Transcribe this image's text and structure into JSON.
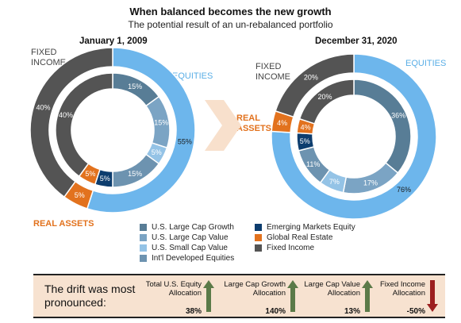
{
  "header": {
    "title": "When balanced becomes the new growth",
    "subtitle": "The potential result of an un-rebalanced portfolio"
  },
  "colors": {
    "us_large_cap_growth": "#587d96",
    "us_large_cap_value": "#7ba4c4",
    "us_small_cap_value": "#94c3e6",
    "intl_developed": "#6d93b0",
    "emerging_markets": "#0d3d6e",
    "global_real_estate": "#e2721e",
    "fixed_income": "#545454",
    "equities_outer": "#6db6ec",
    "fixed_outer": "#545454",
    "real_assets_outer": "#e2721e",
    "up_arrow": "#5b7a48",
    "down_arrow": "#9c1f1f"
  },
  "chart_data": [
    {
      "type": "pie",
      "title": "January 1, 2009",
      "group_labels": {
        "fixed": "FIXED INCOME",
        "equities": "EQUITIES",
        "real": "REAL ASSETS"
      },
      "outer": [
        {
          "name": "EQUITIES",
          "value": 55,
          "label": "55%"
        },
        {
          "name": "REAL ASSETS",
          "value": 5,
          "label": "5%"
        },
        {
          "name": "FIXED INCOME",
          "value": 40,
          "label": "40%"
        }
      ],
      "inner": [
        {
          "name": "U.S. Large Cap Growth",
          "value": 15,
          "label": "15%"
        },
        {
          "name": "U.S. Large Cap Value",
          "value": 15,
          "label": "15%"
        },
        {
          "name": "U.S. Small Cap Value",
          "value": 5,
          "label": "5%"
        },
        {
          "name": "Int'l Developed Equities",
          "value": 15,
          "label": "15%"
        },
        {
          "name": "Emerging Markets Equity",
          "value": 5,
          "label": "5%"
        },
        {
          "name": "Global Real Estate",
          "value": 5,
          "label": "5%"
        },
        {
          "name": "Fixed Income",
          "value": 40,
          "label": "40%"
        }
      ]
    },
    {
      "type": "pie",
      "title": "December 31, 2020",
      "group_labels": {
        "fixed": "FIXED INCOME",
        "equities": "EQUITIES",
        "real": "REAL ASSETS"
      },
      "outer": [
        {
          "name": "EQUITIES",
          "value": 76,
          "label": "76%"
        },
        {
          "name": "REAL ASSETS",
          "value": 4,
          "label": "4%"
        },
        {
          "name": "FIXED INCOME",
          "value": 20,
          "label": "20%"
        }
      ],
      "inner": [
        {
          "name": "U.S. Large Cap Growth",
          "value": 36,
          "label": "36%"
        },
        {
          "name": "U.S. Large Cap Value",
          "value": 17,
          "label": "17%"
        },
        {
          "name": "U.S. Small Cap Value",
          "value": 7,
          "label": "7%"
        },
        {
          "name": "Int'l Developed Equities",
          "value": 11,
          "label": "11%"
        },
        {
          "name": "Emerging Markets Equity",
          "value": 5,
          "label": "5%"
        },
        {
          "name": "Global Real Estate",
          "value": 4,
          "label": "4%"
        },
        {
          "name": "Fixed Income",
          "value": 20,
          "label": "20%"
        }
      ]
    }
  ],
  "legend": [
    {
      "label": "U.S. Large Cap Growth",
      "color": "#587d96"
    },
    {
      "label": "U.S. Large Cap Value",
      "color": "#7ba4c4"
    },
    {
      "label": "U.S. Small Cap Value",
      "color": "#94c3e6"
    },
    {
      "label": "Int'l Developed Equities",
      "color": "#6d93b0"
    },
    {
      "label": "Emerging Markets Equity",
      "color": "#0d3d6e"
    },
    {
      "label": "Global Real Estate",
      "color": "#e2721e"
    },
    {
      "label": "Fixed Income",
      "color": "#545454"
    }
  ],
  "drift": {
    "lead": "The drift was most pronounced:",
    "metrics": [
      {
        "label": "Total U.S. Equity Allocation",
        "value": "38%",
        "direction": "up"
      },
      {
        "label": "Large Cap Growth Allocation",
        "value": "140%",
        "direction": "up"
      },
      {
        "label": "Large Cap Value Allocation",
        "value": "13%",
        "direction": "up"
      },
      {
        "label": "Fixed Income Allocation",
        "value": "-50%",
        "direction": "down"
      }
    ]
  }
}
